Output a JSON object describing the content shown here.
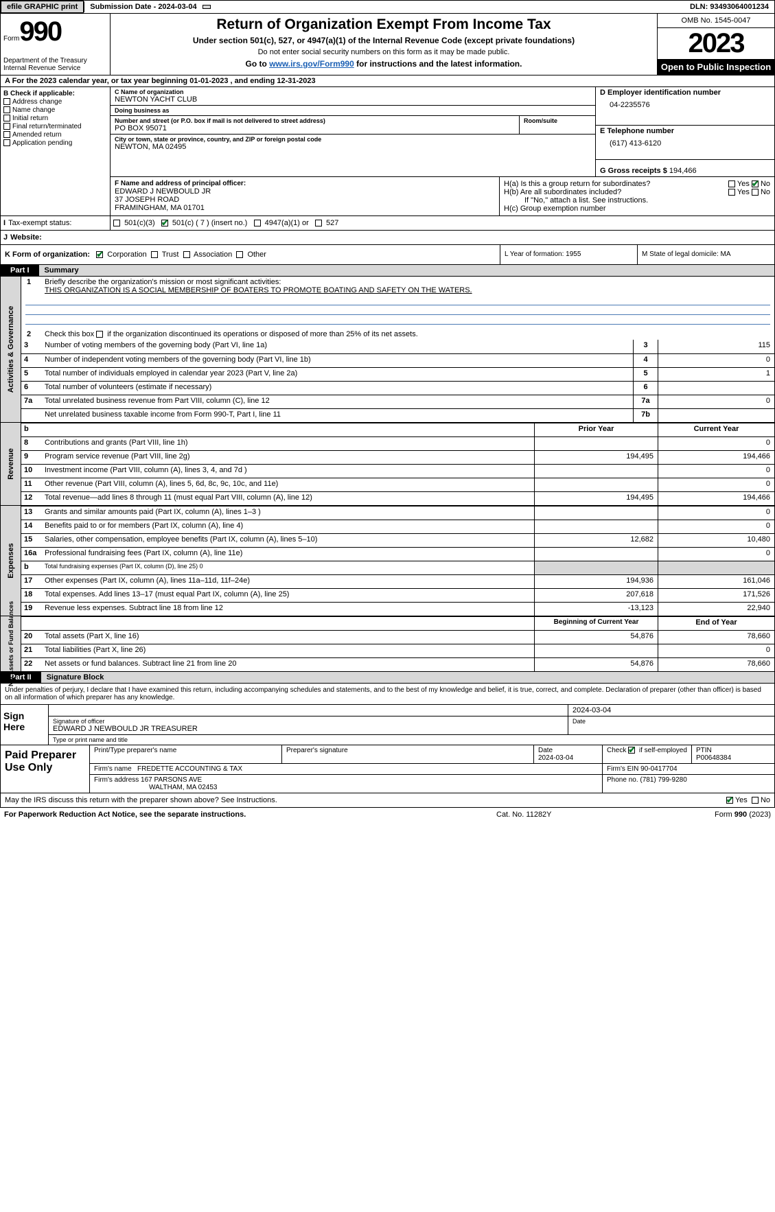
{
  "topbar": {
    "efile": "efile GRAPHIC print",
    "submission": "Submission Date - 2024-03-04",
    "dln": "DLN: 93493064001234"
  },
  "header": {
    "form_prefix": "Form",
    "form_number": "990",
    "dept": "Department of the Treasury",
    "irs": "Internal Revenue Service",
    "title": "Return of Organization Exempt From Income Tax",
    "sub1": "Under section 501(c), 527, or 4947(a)(1) of the Internal Revenue Code (except private foundations)",
    "sub2": "Do not enter social security numbers on this form as it may be made public.",
    "sub3_pre": "Go to ",
    "sub3_link": "www.irs.gov/Form990",
    "sub3_post": " for instructions and the latest information.",
    "omb": "OMB No. 1545-0047",
    "year": "2023",
    "inspect": "Open to Public Inspection"
  },
  "lineA": "A For the 2023 calendar year, or tax year beginning 01-01-2023    , and ending 12-31-2023",
  "colB": {
    "hdr": "B Check if applicable:",
    "opts": [
      "Address change",
      "Name change",
      "Initial return",
      "Final return/terminated",
      "Amended return",
      "Application pending"
    ]
  },
  "org": {
    "name_lbl": "C Name of organization",
    "name": "NEWTON YACHT CLUB",
    "dba_lbl": "Doing business as",
    "dba": "",
    "addr_lbl": "Number and street (or P.O. box if mail is not delivered to street address)",
    "addr": "PO BOX 95071",
    "room_lbl": "Room/suite",
    "city_lbl": "City or town, state or province, country, and ZIP or foreign postal code",
    "city": "NEWTON, MA  02495"
  },
  "boxD": {
    "lbl": "D Employer identification number",
    "val": "04-2235576"
  },
  "boxE": {
    "lbl": "E Telephone number",
    "val": "(617) 413-6120"
  },
  "boxG": {
    "lbl": "G Gross receipts $ ",
    "val": "194,466"
  },
  "officer": {
    "lbl": "F  Name and address of principal officer:",
    "name": "EDWARD J NEWBOULD JR",
    "addr1": "37 JOSEPH ROAD",
    "addr2": "FRAMINGHAM, MA  01701"
  },
  "boxH": {
    "a": "H(a)  Is this a group return for subordinates?",
    "b": "H(b)  Are all subordinates included?",
    "note": "If \"No,\" attach a list. See instructions.",
    "c": "H(c)  Group exemption number "
  },
  "taxStatus": {
    "lbl": "Tax-exempt status:",
    "c3": "501(c)(3)",
    "c": "501(c) ( 7 ) (insert no.)",
    "a4947": "4947(a)(1) or",
    "s527": "527"
  },
  "website": {
    "lbl": "Website: "
  },
  "lineK": {
    "lbl": "K Form of organization:",
    "opts": [
      "Corporation",
      "Trust",
      "Association",
      "Other"
    ]
  },
  "lineL": "L Year of formation: 1955",
  "lineM": "M State of legal domicile: MA",
  "part1": {
    "tab": "Part I",
    "title": "Summary"
  },
  "gov": {
    "side": "Activities & Governance",
    "l1_lbl": "Briefly describe the organization's mission or most significant activities:",
    "l1_val": "THIS ORGANIZATION IS A SOCIAL MEMBERSHIP OF BOATERS TO PROMOTE BOATING AND SAFETY ON THE WATERS.",
    "l2": "Check this box      if the organization discontinued its operations or disposed of more than 25% of its net assets.",
    "rows": [
      {
        "n": "3",
        "t": "Number of voting members of the governing body (Part VI, line 1a)",
        "r": "3",
        "v": "115"
      },
      {
        "n": "4",
        "t": "Number of independent voting members of the governing body (Part VI, line 1b)",
        "r": "4",
        "v": "0"
      },
      {
        "n": "5",
        "t": "Total number of individuals employed in calendar year 2023 (Part V, line 2a)",
        "r": "5",
        "v": "1"
      },
      {
        "n": "6",
        "t": "Total number of volunteers (estimate if necessary)",
        "r": "6",
        "v": ""
      },
      {
        "n": "7a",
        "t": "Total unrelated business revenue from Part VIII, column (C), line 12",
        "r": "7a",
        "v": "0"
      },
      {
        "n": "",
        "t": "Net unrelated business taxable income from Form 990-T, Part I, line 11",
        "r": "7b",
        "v": ""
      }
    ]
  },
  "rev": {
    "side": "Revenue",
    "hdr1": "Prior Year",
    "hdr2": "Current Year",
    "rows": [
      {
        "n": "8",
        "t": "Contributions and grants (Part VIII, line 1h)",
        "v1": "",
        "v2": "0"
      },
      {
        "n": "9",
        "t": "Program service revenue (Part VIII, line 2g)",
        "v1": "194,495",
        "v2": "194,466"
      },
      {
        "n": "10",
        "t": "Investment income (Part VIII, column (A), lines 3, 4, and 7d )",
        "v1": "",
        "v2": "0"
      },
      {
        "n": "11",
        "t": "Other revenue (Part VIII, column (A), lines 5, 6d, 8c, 9c, 10c, and 11e)",
        "v1": "",
        "v2": "0"
      },
      {
        "n": "12",
        "t": "Total revenue—add lines 8 through 11 (must equal Part VIII, column (A), line 12)",
        "v1": "194,495",
        "v2": "194,466"
      }
    ]
  },
  "exp": {
    "side": "Expenses",
    "rows": [
      {
        "n": "13",
        "t": "Grants and similar amounts paid (Part IX, column (A), lines 1–3 )",
        "v1": "",
        "v2": "0"
      },
      {
        "n": "14",
        "t": "Benefits paid to or for members (Part IX, column (A), line 4)",
        "v1": "",
        "v2": "0"
      },
      {
        "n": "15",
        "t": "Salaries, other compensation, employee benefits (Part IX, column (A), lines 5–10)",
        "v1": "12,682",
        "v2": "10,480"
      },
      {
        "n": "16a",
        "t": "Professional fundraising fees (Part IX, column (A), line 11e)",
        "v1": "",
        "v2": "0"
      },
      {
        "n": "b",
        "t": "Total fundraising expenses (Part IX, column (D), line 25) 0",
        "v1": "",
        "v2": "",
        "shaded": true,
        "small": true
      },
      {
        "n": "17",
        "t": "Other expenses (Part IX, column (A), lines 11a–11d, 11f–24e)",
        "v1": "194,936",
        "v2": "161,046"
      },
      {
        "n": "18",
        "t": "Total expenses. Add lines 13–17 (must equal Part IX, column (A), line 25)",
        "v1": "207,618",
        "v2": "171,526"
      },
      {
        "n": "19",
        "t": "Revenue less expenses. Subtract line 18 from line 12",
        "v1": "-13,123",
        "v2": "22,940"
      }
    ]
  },
  "net": {
    "side": "Net Assets or Fund Balances",
    "hdr1": "Beginning of Current Year",
    "hdr2": "End of Year",
    "rows": [
      {
        "n": "20",
        "t": "Total assets (Part X, line 16)",
        "v1": "54,876",
        "v2": "78,660"
      },
      {
        "n": "21",
        "t": "Total liabilities (Part X, line 26)",
        "v1": "",
        "v2": "0"
      },
      {
        "n": "22",
        "t": "Net assets or fund balances. Subtract line 21 from line 20",
        "v1": "54,876",
        "v2": "78,660"
      }
    ]
  },
  "part2": {
    "tab": "Part II",
    "title": "Signature Block"
  },
  "sigText": "Under penalties of perjury, I declare that I have examined this return, including accompanying schedules and statements, and to the best of my knowledge and belief, it is true, correct, and complete. Declaration of preparer (other than officer) is based on all information of which preparer has any knowledge.",
  "sign": {
    "left": "Sign Here",
    "date": "2024-03-04",
    "sig_lbl": "Signature of officer",
    "sig_val": "EDWARD J NEWBOULD JR  TREASURER",
    "date_lbl": "Date",
    "type_lbl": "Type or print name and title"
  },
  "prep": {
    "left": "Paid Preparer Use Only",
    "h1": "Print/Type preparer's name",
    "h2": "Preparer's signature",
    "h3": "Date",
    "date": "2024-03-04",
    "check": "Check        if self-employed",
    "ptin_lbl": "PTIN",
    "ptin": "P00648384",
    "firm_lbl": "Firm's name   ",
    "firm": "FREDETTE ACCOUNTING & TAX",
    "ein_lbl": "Firm's EIN ",
    "ein": "90-0417704",
    "addr_lbl": "Firm's address ",
    "addr1": "167 PARSONS AVE",
    "addr2": "WALTHAM, MA  02453",
    "phone_lbl": "Phone no. ",
    "phone": "(781) 799-9280"
  },
  "discuss": "May the IRS discuss this return with the preparer shown above? See Instructions.",
  "footer": {
    "l": "For Paperwork Reduction Act Notice, see the separate instructions.",
    "m": "Cat. No. 11282Y",
    "r_pre": "Form ",
    "r_bold": "990",
    "r_post": " (2023)"
  },
  "yes": "Yes",
  "no": "No"
}
